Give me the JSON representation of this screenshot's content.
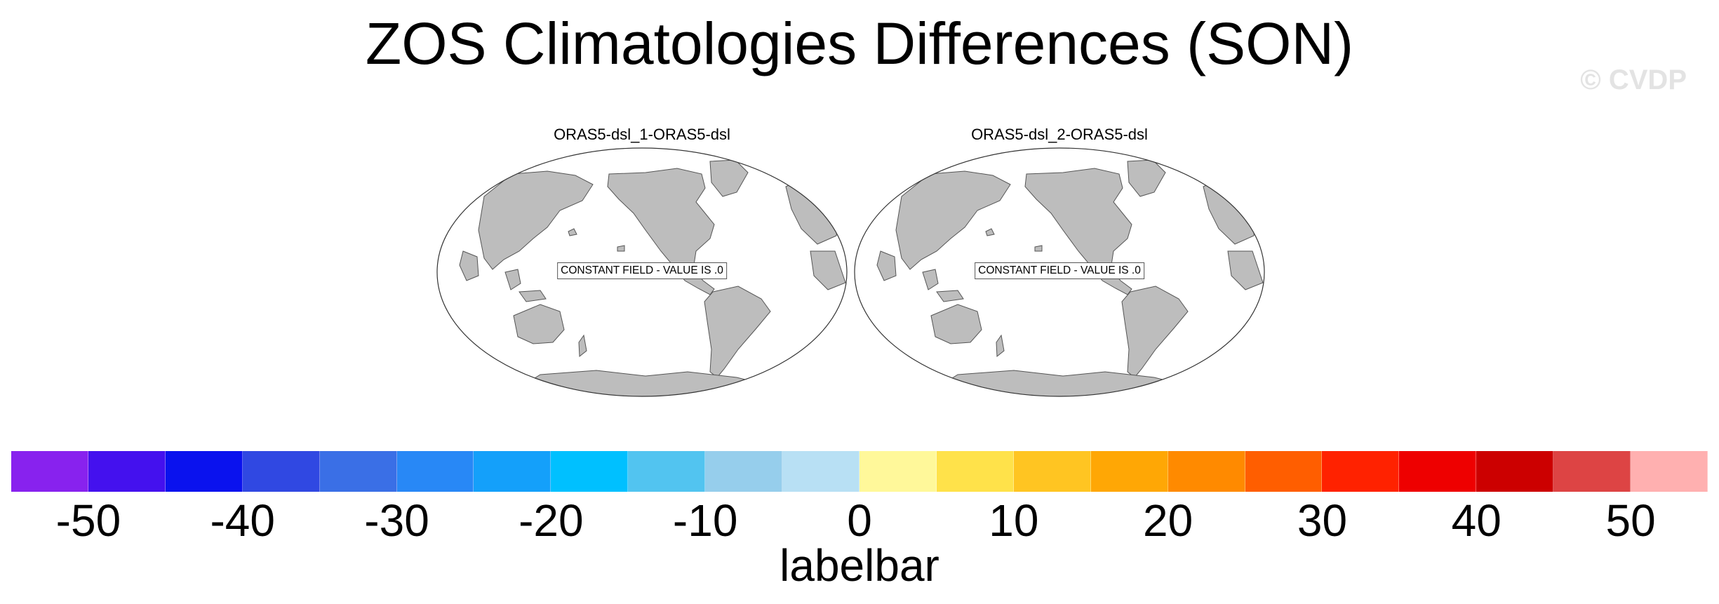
{
  "title": "ZOS Climatologies Differences (SON)",
  "watermark": "© CVDP",
  "panels": [
    {
      "title": "ORAS5-dsl_1-ORAS5-dsl",
      "label": "CONSTANT FIELD - VALUE IS .0"
    },
    {
      "title": "ORAS5-dsl_2-ORAS5-dsl",
      "label": "CONSTANT FIELD - VALUE IS .0"
    }
  ],
  "colors": {
    "land": "#bdbdbd",
    "coast": "#555555",
    "boxes": [
      "#8822ee",
      "#4411ee",
      "#0a12ee",
      "#3048e2",
      "#3a6fe6",
      "#2888f6",
      "#14a0fa",
      "#00c0ff",
      "#52c4f0",
      "#96ceec",
      "#b8e0f4",
      "#fff89a",
      "#ffe24a",
      "#ffc522",
      "#ffa705",
      "#ff8a00",
      "#ff5e00",
      "#ff2200",
      "#ee0000",
      "#cc0000",
      "#dd4444",
      "#ffb0b0"
    ]
  },
  "colorbar": {
    "label": "labelbar",
    "ticks": [
      "-50",
      "-40",
      "-30",
      "-20",
      "-10",
      "0",
      "10",
      "20",
      "30",
      "40",
      "50"
    ]
  }
}
